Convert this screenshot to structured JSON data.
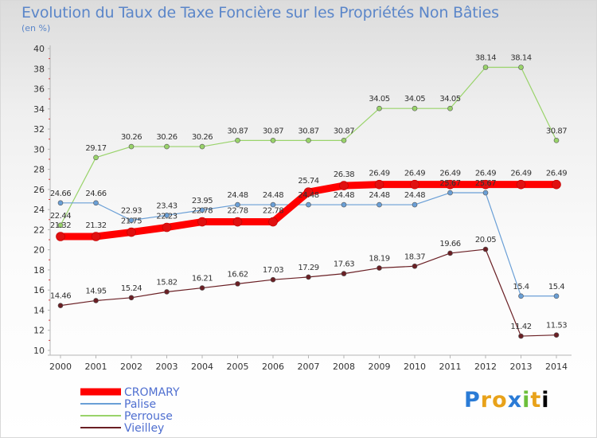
{
  "chart_data": {
    "type": "line",
    "title": "Evolution du Taux de Taxe Foncière sur les Propriétés Non Bâties",
    "subtitle": "(en %)",
    "x": [
      "2000",
      "2001",
      "2002",
      "2003",
      "2004",
      "2005",
      "2006",
      "2007",
      "2008",
      "2009",
      "2010",
      "2011",
      "2012",
      "2013",
      "2014"
    ],
    "yticks": [
      "10",
      "12",
      "14",
      "16",
      "18",
      "20",
      "22",
      "24",
      "26",
      "28",
      "30",
      "32",
      "34",
      "36",
      "38",
      "40"
    ],
    "ylim": [
      10,
      40
    ],
    "grid": false,
    "legend_position": "bottom-left",
    "series": [
      {
        "name": "CROMARY",
        "color": "#ff0000",
        "values": [
          21.32,
          21.32,
          21.75,
          22.23,
          22.78,
          22.78,
          22.78,
          25.74,
          26.38,
          26.49,
          26.49,
          26.49,
          26.49,
          26.49,
          26.49
        ],
        "labels": [
          "21.32",
          "21.32",
          "21.75",
          "22.23",
          "22.78",
          "22.78",
          "22.78",
          "25.74",
          "26.38",
          "26.49",
          "26.49",
          "26.49",
          "26.49",
          "26.49",
          "26.49"
        ]
      },
      {
        "name": "Palise",
        "color": "#6a9fd6",
        "values": [
          24.66,
          24.66,
          22.93,
          23.43,
          23.95,
          24.48,
          24.48,
          24.48,
          24.48,
          24.48,
          24.48,
          25.67,
          25.67,
          15.4,
          15.4
        ],
        "labels": [
          "24.66",
          "24.66",
          "22.93",
          "23.43",
          "23.95",
          "24.48",
          "24.48",
          "24.48",
          "24.48",
          "24.48",
          "24.48",
          "25.67",
          "25.67",
          "15.4",
          "15.4"
        ]
      },
      {
        "name": "Perrouse",
        "color": "#99d36a",
        "values": [
          22.44,
          29.17,
          30.26,
          30.26,
          30.26,
          30.87,
          30.87,
          30.87,
          30.87,
          34.05,
          34.05,
          34.05,
          38.14,
          38.14,
          30.87
        ],
        "labels": [
          "22.44",
          "29.17",
          "30.26",
          "30.26",
          "30.26",
          "30.87",
          "30.87",
          "30.87",
          "30.87",
          "34.05",
          "34.05",
          "34.05",
          "38.14",
          "38.14",
          "30.87"
        ]
      },
      {
        "name": "Vieilley",
        "color": "#6a1f24",
        "values": [
          14.46,
          14.95,
          15.24,
          15.82,
          16.21,
          16.62,
          17.03,
          17.29,
          17.63,
          18.19,
          18.37,
          19.66,
          20.05,
          11.42,
          11.53
        ],
        "labels": [
          "14.46",
          "14.95",
          "15.24",
          "15.82",
          "16.21",
          "16.62",
          "17.03",
          "17.29",
          "17.63",
          "18.19",
          "18.37",
          "19.66",
          "20.05",
          "11.42",
          "11.53"
        ]
      }
    ]
  },
  "logo": {
    "letters": [
      "P",
      "r",
      "o",
      "x",
      "i",
      "t",
      "i"
    ]
  }
}
